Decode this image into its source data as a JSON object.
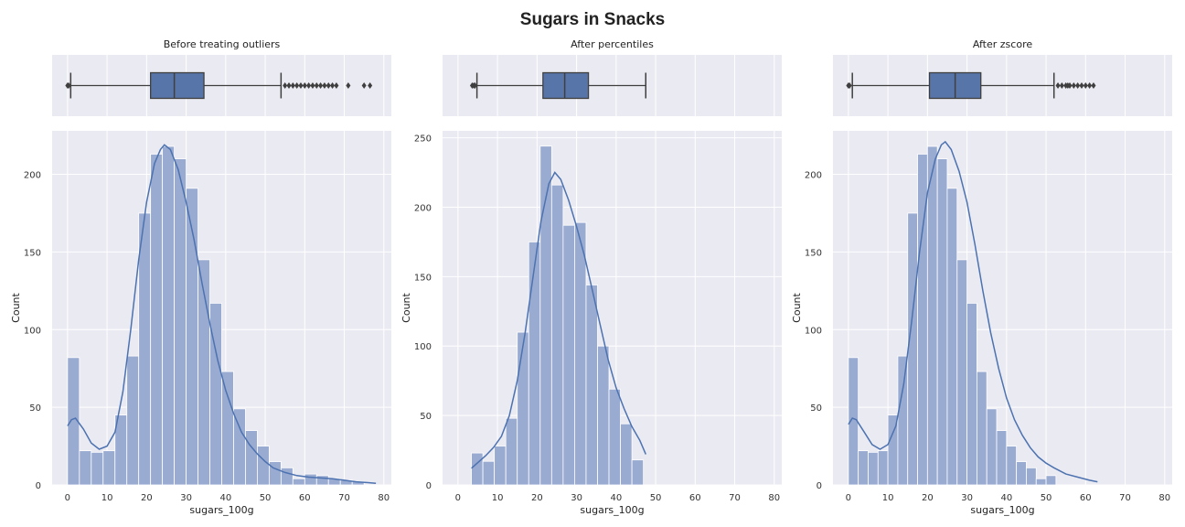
{
  "figure": {
    "title": "Sugars in Snacks"
  },
  "colors": {
    "panel_bg": "#eaeaf2",
    "grid": "#ffffff",
    "bar_fill": "#9aabd1",
    "kde_line": "#4c72b0",
    "box_fill": "#5875a9",
    "box_edge": "#3f3f3f"
  },
  "chart_data": [
    {
      "type": "bar",
      "subtitle": "Before treating outliers",
      "xlabel": "sugars_100g",
      "ylabel": "Count",
      "xlim": [
        -3.9,
        81.9
      ],
      "ylim": [
        0,
        228
      ],
      "xticks": [
        0,
        10,
        20,
        30,
        40,
        50,
        60,
        70,
        80
      ],
      "yticks": [
        0,
        50,
        100,
        150,
        200
      ],
      "grid": true,
      "bin_start": 0,
      "bin_width": 3,
      "values": [
        82,
        22,
        21,
        22,
        45,
        83,
        175,
        213,
        218,
        210,
        191,
        145,
        117,
        73,
        49,
        35,
        25,
        15,
        11,
        4,
        7,
        6,
        4,
        3,
        2
      ],
      "kde": [
        [
          0,
          38
        ],
        [
          1,
          42
        ],
        [
          2,
          43
        ],
        [
          4,
          36
        ],
        [
          6,
          27
        ],
        [
          8,
          23
        ],
        [
          10,
          25
        ],
        [
          12,
          34
        ],
        [
          14,
          60
        ],
        [
          16,
          100
        ],
        [
          18,
          145
        ],
        [
          20,
          182
        ],
        [
          22,
          207
        ],
        [
          23.5,
          216
        ],
        [
          24.5,
          219
        ],
        [
          26,
          216
        ],
        [
          28,
          203
        ],
        [
          30,
          182
        ],
        [
          32,
          158
        ],
        [
          34,
          130
        ],
        [
          36,
          104
        ],
        [
          38,
          80
        ],
        [
          40,
          61
        ],
        [
          42,
          46
        ],
        [
          44,
          34
        ],
        [
          46,
          26
        ],
        [
          48,
          20
        ],
        [
          50,
          15
        ],
        [
          52,
          11
        ],
        [
          55,
          8
        ],
        [
          58,
          6
        ],
        [
          61,
          5
        ],
        [
          64,
          4.5
        ],
        [
          67,
          4
        ],
        [
          70,
          3
        ],
        [
          73,
          2
        ],
        [
          76,
          1.5
        ],
        [
          78,
          1
        ]
      ],
      "box": {
        "whisker_low": 0.8,
        "q1": 21,
        "median": 27,
        "q3": 34.5,
        "whisker_high": 54,
        "outliers": [
          0,
          0.3,
          55,
          56,
          57,
          58,
          59,
          60,
          61,
          62,
          63,
          64,
          65,
          66,
          67,
          68,
          71,
          75,
          76.5
        ]
      }
    },
    {
      "type": "bar",
      "subtitle": "After percentiles",
      "xlabel": "sugars_100g",
      "ylabel": "Count",
      "xlim": [
        -3.9,
        81.9
      ],
      "ylim": [
        0,
        255
      ],
      "xticks": [
        0,
        10,
        20,
        30,
        40,
        50,
        60,
        70,
        80
      ],
      "yticks": [
        0,
        50,
        100,
        150,
        200,
        250
      ],
      "grid": true,
      "bin_start": 3.4,
      "bin_width": 2.9,
      "values": [
        23,
        17,
        28,
        48,
        110,
        175,
        244,
        216,
        187,
        189,
        144,
        100,
        69,
        44,
        18
      ],
      "kde": [
        [
          3.4,
          12
        ],
        [
          5,
          16
        ],
        [
          7,
          21
        ],
        [
          9,
          27
        ],
        [
          11,
          35
        ],
        [
          13,
          50
        ],
        [
          15,
          75
        ],
        [
          17,
          110
        ],
        [
          19,
          150
        ],
        [
          21,
          190
        ],
        [
          23,
          217
        ],
        [
          24.5,
          225
        ],
        [
          26,
          220
        ],
        [
          28,
          205
        ],
        [
          30,
          186
        ],
        [
          32,
          165
        ],
        [
          34,
          140
        ],
        [
          36,
          115
        ],
        [
          38,
          90
        ],
        [
          40,
          70
        ],
        [
          42,
          55
        ],
        [
          44,
          42
        ],
        [
          46,
          32
        ],
        [
          47.5,
          22
        ]
      ],
      "box": {
        "whisker_low": 4.8,
        "q1": 21.5,
        "median": 27,
        "q3": 33,
        "whisker_high": 47.5,
        "outliers": [
          3.6,
          4,
          4.3
        ]
      }
    },
    {
      "type": "bar",
      "subtitle": "After zscore",
      "xlabel": "sugars_100g",
      "ylabel": "Count",
      "xlim": [
        -3.9,
        81.9
      ],
      "ylim": [
        0,
        228
      ],
      "xticks": [
        0,
        10,
        20,
        30,
        40,
        50,
        60,
        70,
        80
      ],
      "yticks": [
        0,
        50,
        100,
        150,
        200
      ],
      "grid": true,
      "bin_start": 0,
      "bin_width": 2.5,
      "values": [
        82,
        22,
        21,
        22,
        45,
        83,
        175,
        213,
        218,
        210,
        191,
        145,
        117,
        73,
        49,
        35,
        25,
        15,
        11,
        4,
        6
      ],
      "kde": [
        [
          0,
          39
        ],
        [
          1,
          43
        ],
        [
          2,
          42
        ],
        [
          4,
          34
        ],
        [
          6,
          26
        ],
        [
          8,
          23
        ],
        [
          10,
          26
        ],
        [
          12,
          38
        ],
        [
          14,
          65
        ],
        [
          16,
          105
        ],
        [
          18,
          150
        ],
        [
          20,
          188
        ],
        [
          22,
          210
        ],
        [
          23.5,
          219
        ],
        [
          24.5,
          221
        ],
        [
          26,
          216
        ],
        [
          28,
          202
        ],
        [
          30,
          182
        ],
        [
          32,
          155
        ],
        [
          34,
          125
        ],
        [
          36,
          98
        ],
        [
          38,
          75
        ],
        [
          40,
          56
        ],
        [
          42,
          42
        ],
        [
          44,
          32
        ],
        [
          46,
          24
        ],
        [
          48,
          18
        ],
        [
          50,
          14
        ],
        [
          52,
          11
        ],
        [
          55,
          7
        ],
        [
          58,
          5
        ],
        [
          61,
          3
        ],
        [
          63,
          2
        ]
      ],
      "box": {
        "whisker_low": 1,
        "q1": 20.5,
        "median": 27,
        "q3": 33.5,
        "whisker_high": 52,
        "outliers": [
          0,
          0.3,
          53,
          54,
          55,
          55.5,
          56,
          57,
          58,
          59,
          60,
          61,
          62
        ]
      }
    }
  ]
}
